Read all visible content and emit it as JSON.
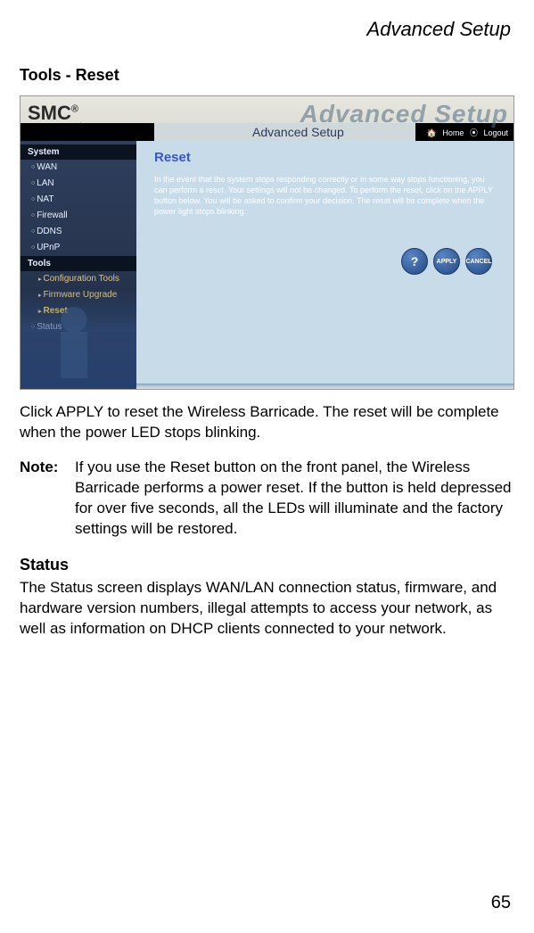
{
  "doc": {
    "header": "Advanced Setup",
    "section_title": "Tools - Reset",
    "page_number": "65"
  },
  "screenshot": {
    "watermark": "Advanced Setup",
    "logo": "SMC",
    "logo_reg": "®",
    "logo_sub": "N e t w o r k s",
    "banner_title": "Advanced Setup",
    "home_link": "Home",
    "logout_link": "Logout",
    "sidebar": {
      "group_system": "System",
      "items": [
        "WAN",
        "LAN",
        "NAT",
        "Firewall",
        "DDNS",
        "UPnP"
      ],
      "group_tools": "Tools",
      "tools_sub": [
        "Configuration Tools",
        "Firmware Upgrade",
        "Reset"
      ],
      "status": "Status"
    },
    "content": {
      "heading": "Reset",
      "blurb": "In the event that the system stops responding correctly or in some way stops functioning, you can perform a reset. Your settings will not be changed. To perform the reset, click on the APPLY button below. You will be asked to confirm your decision. The reset will be complete when the power light stops blinking.",
      "buttons": {
        "help": "HELP",
        "apply": "APPLY",
        "cancel": "CANCEL"
      }
    },
    "colors": {
      "sidebar_bg": "#2b3a56",
      "content_bg": "#c8dbe9",
      "heading_color": "#3a57c5",
      "button_bg": "#22487e"
    }
  },
  "body_text": {
    "para1": "Click APPLY to reset the Wireless Barricade. The reset will be complete when the power LED stops blinking.",
    "note_label": "Note:",
    "note_text": "If you use the Reset button on the front panel, the Wireless Barricade performs a power reset. If the button is held depressed for over five seconds, all the LEDs will illuminate and the factory settings will be restored.",
    "subhead_status": "Status",
    "para_status": "The Status screen displays WAN/LAN connection status, firmware, and hardware version numbers, illegal attempts to access your network, as well as information on DHCP clients connected to your network."
  }
}
